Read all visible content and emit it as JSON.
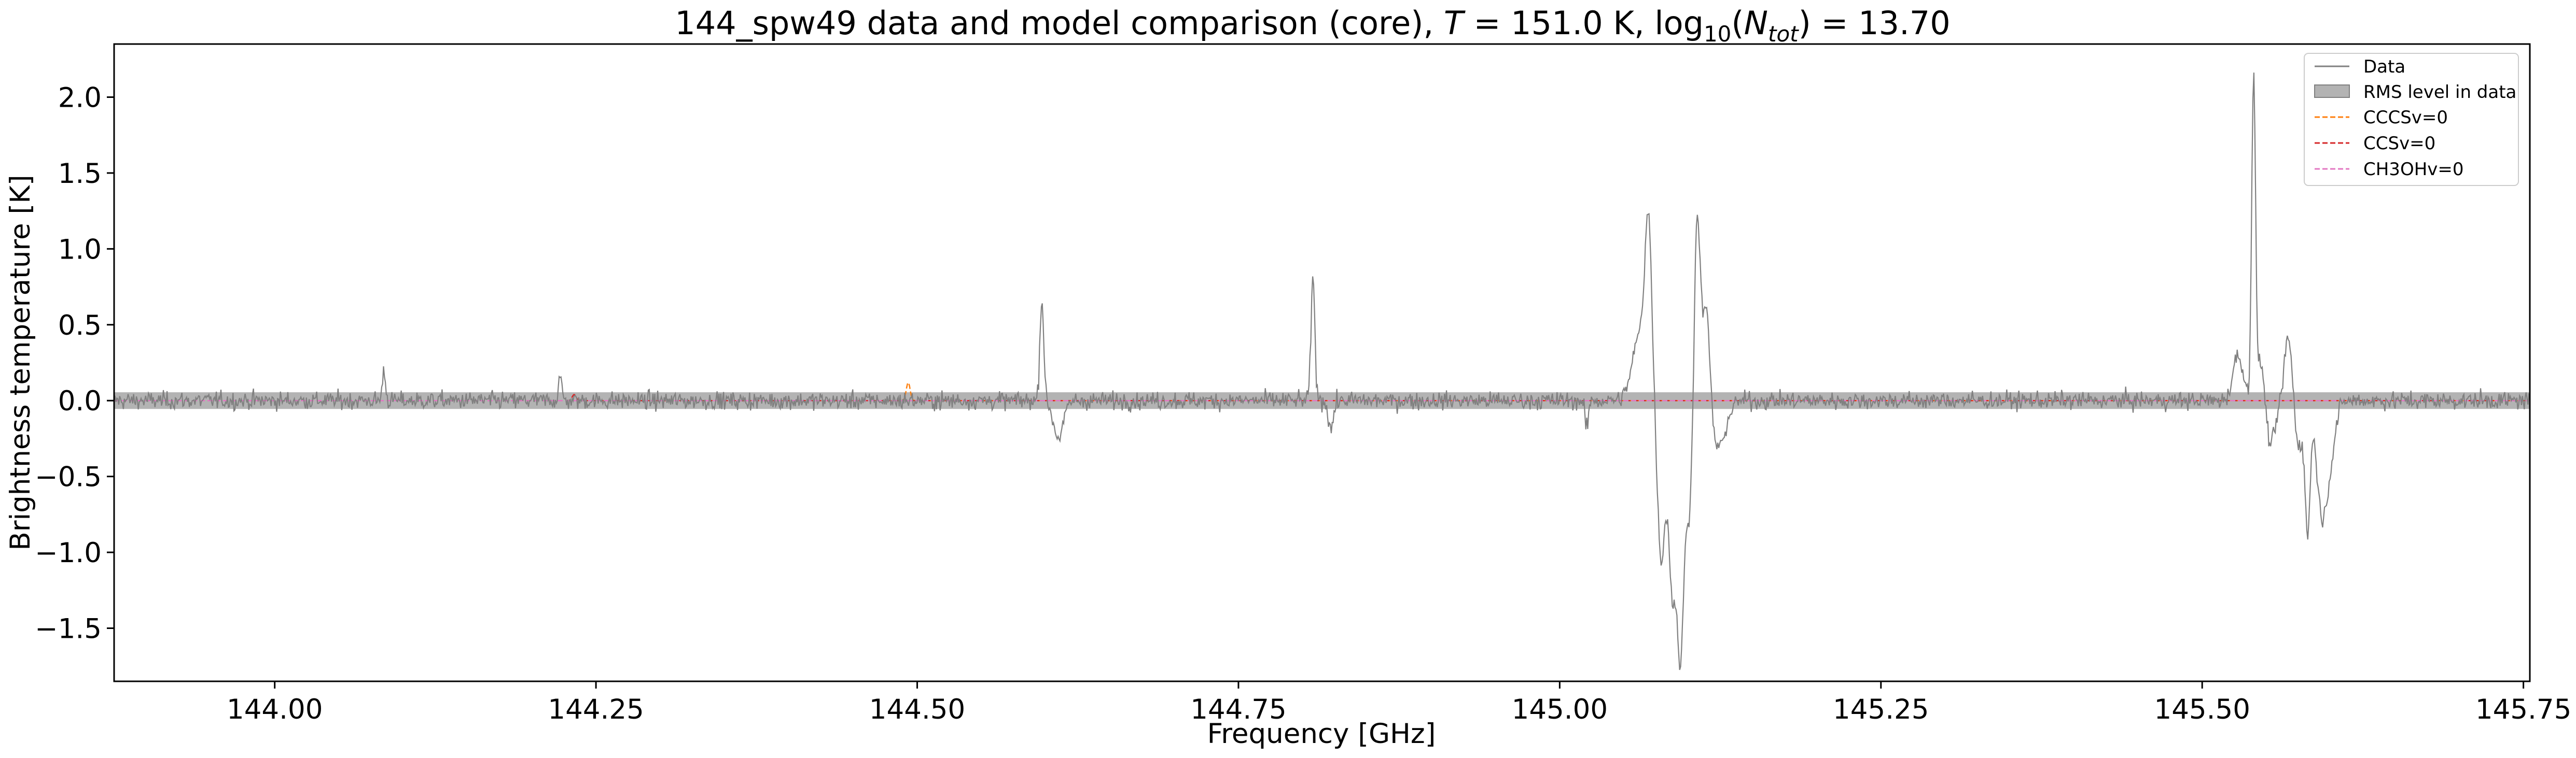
{
  "chart_data": {
    "type": "line",
    "title": {
      "prefix": "144_spw49 data and model comparison (core), ",
      "t_symbol": "T",
      "t_text": " = 151.0 K, log",
      "log_sub": "10",
      "paren_open": "(",
      "n_symbol": "N",
      "n_sub": "tot",
      "suffix": ") = 13.70"
    },
    "xlabel": "Frequency [GHz]",
    "ylabel": "Brightness temperature [K]",
    "xlim": [
      143.875,
      145.755
    ],
    "ylim": [
      -1.85,
      2.35
    ],
    "xticks": [
      144.0,
      144.25,
      144.5,
      144.75,
      145.0,
      145.25,
      145.5,
      145.75
    ],
    "xtick_labels": [
      "144.00",
      "144.25",
      "144.50",
      "144.75",
      "145.00",
      "145.25",
      "145.50",
      "145.75"
    ],
    "yticks": [
      -1.5,
      -1.0,
      -0.5,
      0.0,
      0.5,
      1.0,
      1.5,
      2.0
    ],
    "ytick_labels": [
      "−1.5",
      "−1.0",
      "−0.5",
      "0.0",
      "0.5",
      "1.0",
      "1.5",
      "2.0"
    ],
    "grid": false,
    "legend_position": "top-right",
    "rms_band": {
      "name": "RMS level in data",
      "low": -0.055,
      "high": 0.055,
      "color": "#b3b3b3"
    },
    "series": [
      {
        "name": "Data",
        "color": "#808080",
        "style": "solid",
        "noise_rms": 0.045,
        "features": [
          {
            "x": 144.085,
            "peak": 0.2,
            "width": 0.0012
          },
          {
            "x": 144.222,
            "peak": 0.17,
            "width": 0.0012
          },
          {
            "x": 144.597,
            "peak": 0.68,
            "width": 0.0015
          },
          {
            "x": 144.61,
            "peak": -0.24,
            "width": 0.004
          },
          {
            "x": 144.808,
            "peak": 0.8,
            "width": 0.0015
          },
          {
            "x": 144.822,
            "peak": -0.18,
            "width": 0.002
          },
          {
            "x": 145.021,
            "peak": -0.2,
            "width": 0.0012
          },
          {
            "x": 145.063,
            "peak": 0.45,
            "width": 0.006
          },
          {
            "x": 145.069,
            "peak": 1.0,
            "width": 0.0025
          },
          {
            "x": 145.079,
            "peak": -1.05,
            "width": 0.003
          },
          {
            "x": 145.088,
            "peak": -1.3,
            "width": 0.003
          },
          {
            "x": 145.094,
            "peak": -1.5,
            "width": 0.0022
          },
          {
            "x": 145.1,
            "peak": -0.8,
            "width": 0.003
          },
          {
            "x": 145.107,
            "peak": 1.25,
            "width": 0.0022
          },
          {
            "x": 145.114,
            "peak": 0.7,
            "width": 0.003
          },
          {
            "x": 145.123,
            "peak": -0.32,
            "width": 0.006
          },
          {
            "x": 145.528,
            "peak": 0.3,
            "width": 0.004
          },
          {
            "x": 145.54,
            "peak": 2.1,
            "width": 0.0015
          },
          {
            "x": 145.546,
            "peak": 0.3,
            "width": 0.003
          },
          {
            "x": 145.553,
            "peak": -0.3,
            "width": 0.004
          },
          {
            "x": 145.567,
            "peak": 0.42,
            "width": 0.003
          },
          {
            "x": 145.575,
            "peak": -0.3,
            "width": 0.003
          },
          {
            "x": 145.582,
            "peak": -0.85,
            "width": 0.002
          },
          {
            "x": 145.593,
            "peak": -0.7,
            "width": 0.004
          },
          {
            "x": 145.6,
            "peak": -0.3,
            "width": 0.004
          }
        ]
      },
      {
        "name": "CCCSv=0",
        "color": "#ff7f0e",
        "style": "dashed",
        "features": [
          {
            "x": 144.493,
            "peak": 0.12,
            "width": 0.0015
          }
        ]
      },
      {
        "name": "CCSv=0",
        "color": "#d62728",
        "style": "dashed",
        "features": [
          {
            "x": 144.233,
            "peak": 0.04,
            "width": 0.0015
          }
        ]
      },
      {
        "name": "CH3OHv=0",
        "color": "#e377c2",
        "style": "dashed",
        "features": []
      }
    ]
  }
}
